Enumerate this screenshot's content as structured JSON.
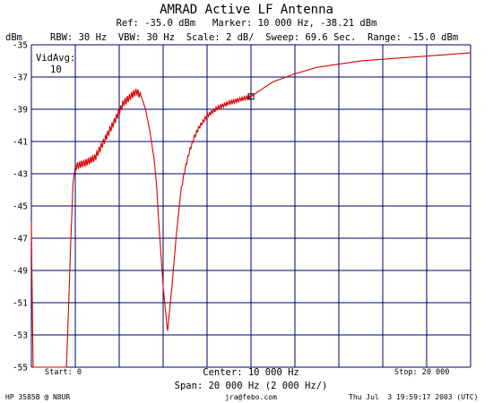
{
  "header": {
    "title": "AMRAD Active LF Antenna",
    "info_line1": "Ref: -35.0 dBm   Marker: 10 000 Hz, -38.21 dBm",
    "info_line2": "RBW: 30 Hz  VBW: 30 Hz  Scale: 2 dB/  Sweep: 69.6 Sec.  Range: -15.0 dBm",
    "unit": "dBm"
  },
  "annotation": {
    "vidavg_label": "VidAvg:",
    "vidavg_value": "10"
  },
  "footer": {
    "start": "Start: 0",
    "center": "Center: 10 000 Hz",
    "stop": "Stop: 20 000",
    "span": "Span: 20 000 Hz (2 000 Hz/)",
    "instrument": "HP 3585B @ N8UR",
    "email": "jra@febo.com",
    "timestamp": "Thu Jul  3 19:59:17 2003 (UTC)"
  },
  "colors": {
    "trace": "#d80000",
    "grid": "#00006e",
    "background": "#ffffff"
  },
  "chart_data": {
    "type": "line",
    "title": "AMRAD Active LF Antenna",
    "xlabel": "",
    "ylabel": "dBm",
    "xlim": [
      0,
      20000
    ],
    "ylim": [
      -55,
      -35
    ],
    "x_divisions": 10,
    "y_divisions": 10,
    "grid": true,
    "ytick_labels": [
      "-35",
      "-37",
      "-39",
      "-41",
      "-43",
      "-45",
      "-47",
      "-49",
      "-51",
      "-53",
      "-55"
    ],
    "marker": {
      "x": 10000,
      "y": -38.21
    },
    "series": [
      {
        "x": [
          0,
          40,
          80,
          1600,
          1700,
          1800,
          1900,
          2000,
          2100,
          2500,
          2900,
          3300,
          3800,
          4200,
          4600,
          4800,
          5000,
          5200,
          5400,
          5600,
          5700,
          5800,
          6000,
          6200,
          6400,
          6600,
          6800,
          6900,
          7000,
          7200,
          7400,
          7600,
          7800,
          8000,
          8500,
          9000,
          9500,
          10000,
          11000,
          12000,
          13000,
          14000,
          15000,
          16000,
          17000,
          18000,
          19000,
          20000
        ],
        "y": [
          -46.0,
          -51.0,
          -55.0,
          -55.0,
          -51.0,
          -47.0,
          -43.5,
          -42.6,
          -42.5,
          -42.3,
          -42.0,
          -41.0,
          -39.7,
          -38.6,
          -38.1,
          -37.9,
          -38.2,
          -39.0,
          -40.4,
          -42.2,
          -43.7,
          -46.0,
          -50.0,
          -52.8,
          -50.0,
          -46.8,
          -44.2,
          -43.4,
          -42.7,
          -41.6,
          -40.8,
          -40.2,
          -39.8,
          -39.4,
          -38.9,
          -38.6,
          -38.4,
          -38.2,
          -37.3,
          -36.8,
          -36.4,
          -36.2,
          -36.0,
          -35.9,
          -35.8,
          -35.7,
          -35.6,
          -35.5
        ]
      }
    ]
  }
}
